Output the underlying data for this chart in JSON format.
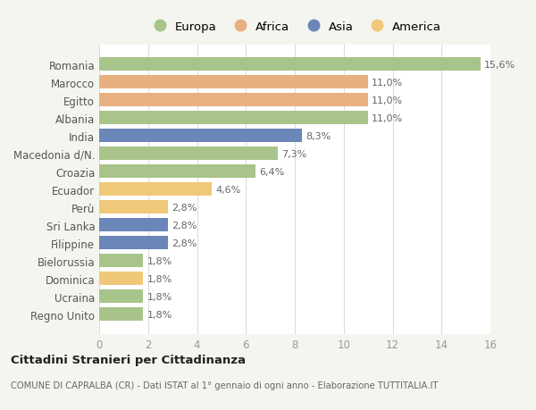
{
  "countries": [
    "Romania",
    "Marocco",
    "Egitto",
    "Albania",
    "India",
    "Macedonia d/N.",
    "Croazia",
    "Ecuador",
    "Perù",
    "Sri Lanka",
    "Filippine",
    "Bielorussia",
    "Dominica",
    "Ucraina",
    "Regno Unito"
  ],
  "values": [
    15.6,
    11.0,
    11.0,
    11.0,
    8.3,
    7.3,
    6.4,
    4.6,
    2.8,
    2.8,
    2.8,
    1.8,
    1.8,
    1.8,
    1.8
  ],
  "labels": [
    "15,6%",
    "11,0%",
    "11,0%",
    "11,0%",
    "8,3%",
    "7,3%",
    "6,4%",
    "4,6%",
    "2,8%",
    "2,8%",
    "2,8%",
    "1,8%",
    "1,8%",
    "1,8%",
    "1,8%"
  ],
  "continents": [
    "Europa",
    "Africa",
    "Africa",
    "Europa",
    "Asia",
    "Europa",
    "Europa",
    "America",
    "America",
    "Asia",
    "Asia",
    "Europa",
    "America",
    "Europa",
    "Europa"
  ],
  "colors": {
    "Europa": "#a8c48a",
    "Africa": "#e8b080",
    "Asia": "#6b86b8",
    "America": "#f0c87a"
  },
  "legend_order": [
    "Europa",
    "Africa",
    "Asia",
    "America"
  ],
  "title": "Cittadini Stranieri per Cittadinanza",
  "subtitle": "COMUNE DI CAPRALBA (CR) - Dati ISTAT al 1° gennaio di ogni anno - Elaborazione TUTTITALIA.IT",
  "xlim": [
    0,
    16
  ],
  "xticks": [
    0,
    2,
    4,
    6,
    8,
    10,
    12,
    14,
    16
  ],
  "bg_color": "#f5f5ef",
  "bar_bg_color": "#ffffff"
}
